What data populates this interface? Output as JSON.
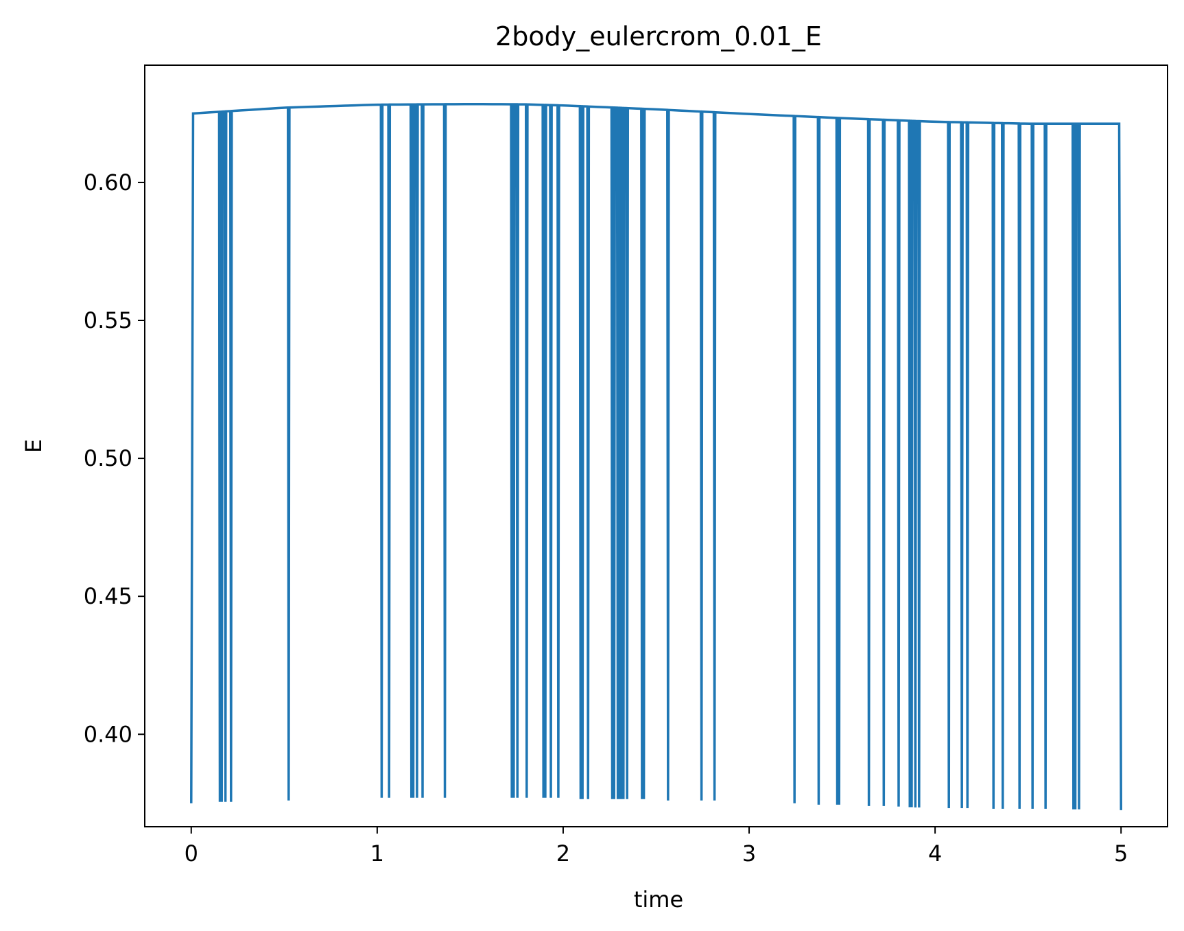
{
  "chart_data": {
    "type": "line",
    "title": "2body_eulercrom_0.01_E",
    "xlabel": "time",
    "ylabel": "E",
    "xlim": [
      -0.25,
      5.25
    ],
    "ylim": [
      0.3665,
      0.6425
    ],
    "grid": false,
    "legend": "none",
    "xticks": [
      0,
      1,
      2,
      3,
      4,
      5
    ],
    "xtick_labels": [
      "0",
      "1",
      "2",
      "3",
      "4",
      "5"
    ],
    "yticks": [
      0.4,
      0.45,
      0.5,
      0.55,
      0.6
    ],
    "ytick_labels": [
      "0.40",
      "0.45",
      "0.50",
      "0.55",
      "0.60"
    ],
    "series": [
      {
        "color": "#1f77b4",
        "envelope": {
          "t": [
            0.01,
            0.5,
            1.0,
            1.5,
            1.8,
            2.0,
            2.5,
            3.0,
            3.5,
            4.0,
            4.5,
            5.0
          ],
          "E": [
            0.625,
            0.6271,
            0.6282,
            0.6284,
            0.6283,
            0.6279,
            0.6265,
            0.6248,
            0.6233,
            0.622,
            0.6213,
            0.6213
          ]
        },
        "dips": [
          {
            "t": 0.15,
            "E": 0.3755
          },
          {
            "t": 0.16,
            "E": 0.3755
          },
          {
            "t": 0.18,
            "E": 0.3755
          },
          {
            "t": 0.21,
            "E": 0.3755
          },
          {
            "t": 0.52,
            "E": 0.376
          },
          {
            "t": 1.02,
            "E": 0.377
          },
          {
            "t": 1.06,
            "E": 0.377
          },
          {
            "t": 1.18,
            "E": 0.377
          },
          {
            "t": 1.19,
            "E": 0.377
          },
          {
            "t": 1.21,
            "E": 0.377
          },
          {
            "t": 1.24,
            "E": 0.377
          },
          {
            "t": 1.36,
            "E": 0.377
          },
          {
            "t": 1.72,
            "E": 0.377
          },
          {
            "t": 1.73,
            "E": 0.377
          },
          {
            "t": 1.75,
            "E": 0.377
          },
          {
            "t": 1.8,
            "E": 0.377
          },
          {
            "t": 1.89,
            "E": 0.377
          },
          {
            "t": 1.9,
            "E": 0.377
          },
          {
            "t": 1.93,
            "E": 0.377
          },
          {
            "t": 1.97,
            "E": 0.377
          },
          {
            "t": 2.09,
            "E": 0.3765
          },
          {
            "t": 2.1,
            "E": 0.3765
          },
          {
            "t": 2.13,
            "E": 0.3765
          },
          {
            "t": 2.26,
            "E": 0.3765
          },
          {
            "t": 2.27,
            "E": 0.3765
          },
          {
            "t": 2.29,
            "E": 0.3765
          },
          {
            "t": 2.3,
            "E": 0.3765
          },
          {
            "t": 2.31,
            "E": 0.3765
          },
          {
            "t": 2.32,
            "E": 0.3765
          },
          {
            "t": 2.34,
            "E": 0.3765
          },
          {
            "t": 2.42,
            "E": 0.3765
          },
          {
            "t": 2.43,
            "E": 0.3765
          },
          {
            "t": 2.56,
            "E": 0.376
          },
          {
            "t": 2.74,
            "E": 0.376
          },
          {
            "t": 2.81,
            "E": 0.376
          },
          {
            "t": 3.24,
            "E": 0.375
          },
          {
            "t": 3.37,
            "E": 0.3745
          },
          {
            "t": 3.47,
            "E": 0.3745
          },
          {
            "t": 3.48,
            "E": 0.3745
          },
          {
            "t": 3.64,
            "E": 0.374
          },
          {
            "t": 3.72,
            "E": 0.374
          },
          {
            "t": 3.8,
            "E": 0.3738
          },
          {
            "t": 3.86,
            "E": 0.3736
          },
          {
            "t": 3.87,
            "E": 0.3736
          },
          {
            "t": 3.89,
            "E": 0.3735
          },
          {
            "t": 3.91,
            "E": 0.3735
          },
          {
            "t": 4.07,
            "E": 0.3732
          },
          {
            "t": 4.14,
            "E": 0.3732
          },
          {
            "t": 4.17,
            "E": 0.3732
          },
          {
            "t": 4.31,
            "E": 0.373
          },
          {
            "t": 4.36,
            "E": 0.373
          },
          {
            "t": 4.45,
            "E": 0.373
          },
          {
            "t": 4.52,
            "E": 0.373
          },
          {
            "t": 4.59,
            "E": 0.373
          },
          {
            "t": 4.74,
            "E": 0.3728
          },
          {
            "t": 4.75,
            "E": 0.3728
          },
          {
            "t": 4.77,
            "E": 0.3728
          }
        ],
        "start": {
          "t": 0.0,
          "E": 0.375
        },
        "end": {
          "t": 5.0,
          "E": 0.3725
        }
      }
    ]
  }
}
